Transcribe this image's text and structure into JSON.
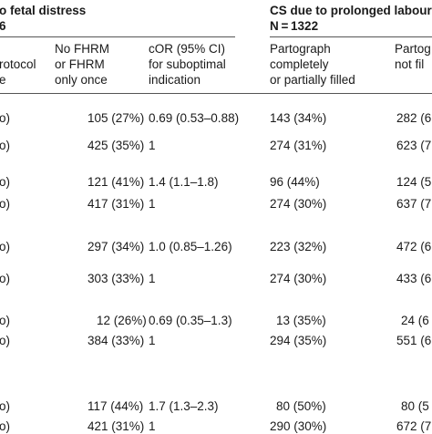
{
  "headers": {
    "group1": {
      "line1": "o fetal distress",
      "line2": "6"
    },
    "group2": {
      "line1": "CS due to prolonged labour",
      "line2": "N = 1322"
    },
    "col_protocol": {
      "line1": "rotocol",
      "line2": "e"
    },
    "col_nofhrm": {
      "line1": "No FHRM",
      "line2": "or FHRM",
      "line3": "only once"
    },
    "col_cor": {
      "line1": "cOR (95% CI)",
      "line2": "for suboptimal",
      "line3": "indication"
    },
    "col_partograph": {
      "line1": "Partograph",
      "line2": "completely",
      "line3": "or partially filled"
    },
    "col_partograph2": {
      "line1": "Partog",
      "line2": "not fil"
    }
  },
  "rows": [
    {
      "a": "o)",
      "b": "105 (27%)",
      "c": "0.69 (0.53–0.88)",
      "d": "143 (34%)",
      "e": "282 (6"
    },
    {
      "a": "o)",
      "b": "425 (35%)",
      "c": "1",
      "d": "274 (31%)",
      "e": "623 (7"
    },
    {
      "a": "o)",
      "b": "121 (41%)",
      "c": "1.4 (1.1–1.8)",
      "d": "96 (44%)",
      "e": "124 (5"
    },
    {
      "a": "o)",
      "b": "417 (31%)",
      "c": "1",
      "d": "274 (30%)",
      "e": "637 (7"
    },
    {
      "a": "o)",
      "b": "297 (34%)",
      "c": "1.0 (0.85–1.26)",
      "d": "223 (32%)",
      "e": "472 (6"
    },
    {
      "a": "o)",
      "b": "303 (33%)",
      "c": "1",
      "d": "274 (30%)",
      "e": "433 (6"
    },
    {
      "a": "o)",
      "b": "12 (26%)",
      "c": "0.69 (0.35–1.3)",
      "d": "13 (35%)",
      "e": "24 (6"
    },
    {
      "a": "o)",
      "b": "384 (33%)",
      "c": "1",
      "d": "294 (35%)",
      "e": "551 (6"
    },
    {
      "a": "o)",
      "b": "117 (44%)",
      "c": "1.7 (1.3–2.3)",
      "d": "80 (50%)",
      "e": "80 (5"
    },
    {
      "a": "o)",
      "b": "421 (31%)",
      "c": "1",
      "d": "290 (30%)",
      "e": "672 (7"
    }
  ]
}
